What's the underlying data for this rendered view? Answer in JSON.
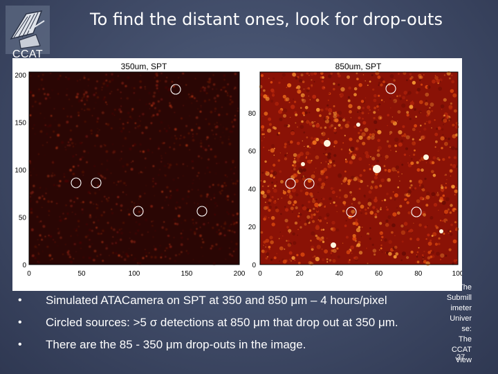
{
  "logo": {
    "text": "CCAT"
  },
  "title": "To find the distant ones, look for  drop-outs",
  "figure": {
    "left_panel": {
      "title": "350um, SPT",
      "x_ticks": [
        "0",
        "50",
        "100",
        "150",
        "200"
      ],
      "y_ticks": [
        "0",
        "50",
        "100",
        "150",
        "200"
      ]
    },
    "right_panel": {
      "title": "850um, SPT",
      "x_ticks": [
        "0",
        "20",
        "40",
        "60",
        "80",
        "100"
      ],
      "y_ticks": [
        "0",
        "20",
        "40",
        "60",
        "80"
      ]
    }
  },
  "bullets": [
    "Simulated ATACamera on SPT at 350 and 850 μm – 4 hours/pixel",
    "Circled sources: >5 σ detections at 850 μm that drop out at 350 μm.",
    "There are the 85 - 350 μm drop-outs in the image."
  ],
  "bullet_marker": "•",
  "side_note": [
    "The",
    "Submill",
    "imeter",
    "Univer",
    "se:",
    "The",
    "CCAT",
    "View"
  ],
  "page_number": "27"
}
